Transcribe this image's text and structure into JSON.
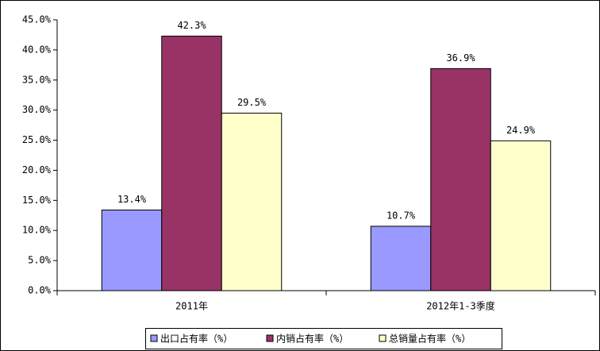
{
  "chart_data": {
    "type": "bar",
    "categories": [
      "2011年",
      "2012年1-3季度"
    ],
    "series": [
      {
        "name": "出口占有率（%）",
        "color": "#9999ff",
        "values": [
          13.4,
          10.7
        ],
        "value_labels": [
          "13.4%",
          "10.7%"
        ]
      },
      {
        "name": "内销占有率（%）",
        "color": "#993366",
        "values": [
          42.3,
          36.9
        ],
        "value_labels": [
          "42.3%",
          "36.9%"
        ]
      },
      {
        "name": "总销量占有率（%）",
        "color": "#ffffcc",
        "values": [
          29.5,
          24.9
        ],
        "value_labels": [
          "29.5%",
          "24.9%"
        ]
      }
    ],
    "ylim": [
      0,
      45
    ],
    "yticks": [
      {
        "value": 0,
        "label": "0.0%"
      },
      {
        "value": 5,
        "label": "5.0%"
      },
      {
        "value": 10,
        "label": "10.0%"
      },
      {
        "value": 15,
        "label": "15.0%"
      },
      {
        "value": 20,
        "label": "20.0%"
      },
      {
        "value": 25,
        "label": "25.0%"
      },
      {
        "value": 30,
        "label": "30.0%"
      },
      {
        "value": 35,
        "label": "35.0%"
      },
      {
        "value": 40,
        "label": "40.0%"
      },
      {
        "value": 45,
        "label": "45.0%"
      }
    ],
    "grid": false,
    "legend": "bottom"
  }
}
